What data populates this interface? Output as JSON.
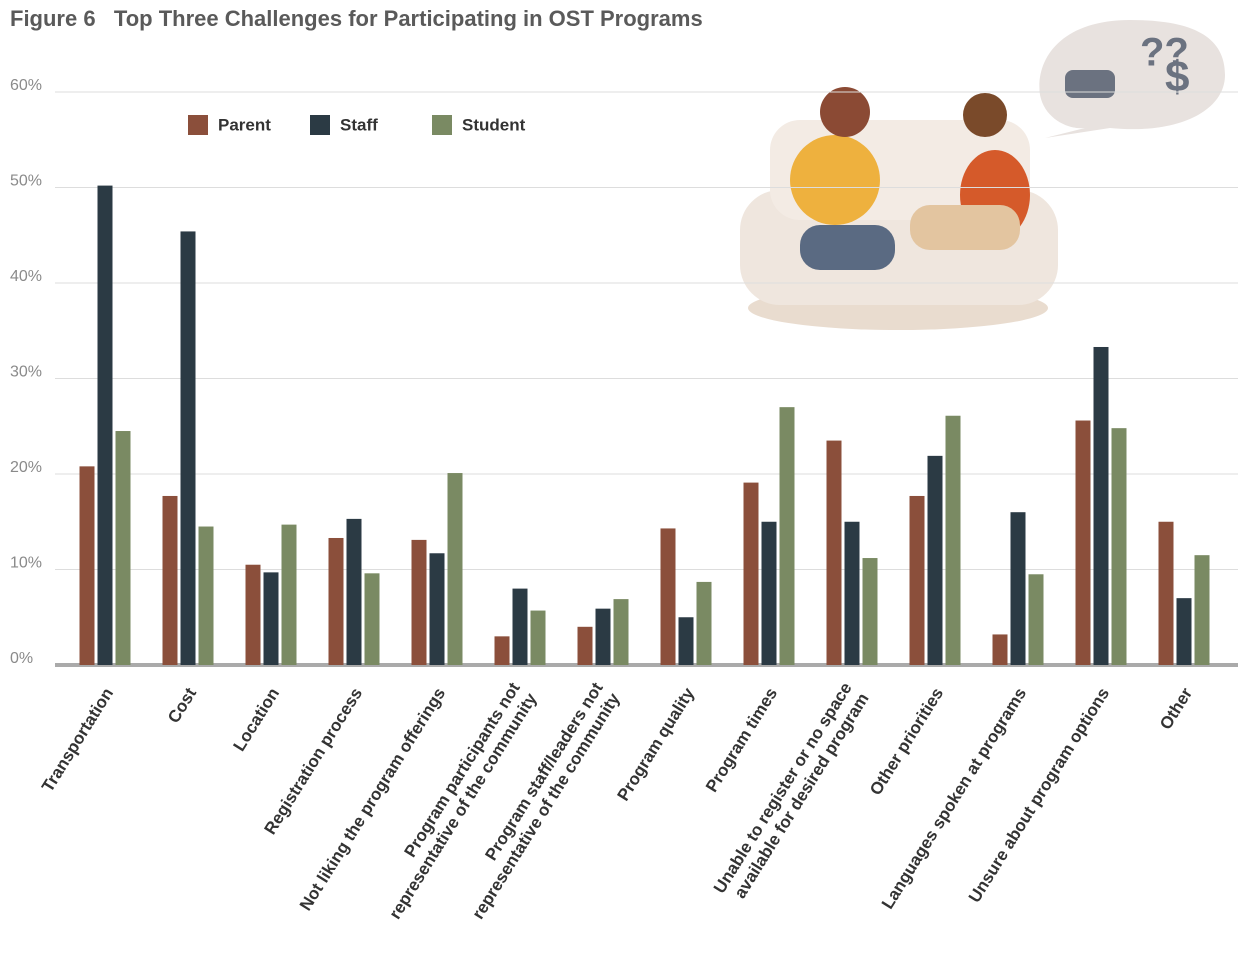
{
  "chart_data": {
    "type": "bar",
    "title": "Figure 6   Top Three Challenges for Participating in OST Programs",
    "categories": [
      [
        "Transportation"
      ],
      [
        "Cost"
      ],
      [
        "Location"
      ],
      [
        "Registration process"
      ],
      [
        "Not liking the program offerings"
      ],
      [
        "Program participants not",
        "representative of the community"
      ],
      [
        "Program staff/leaders not",
        "representative of the community"
      ],
      [
        "Program quality"
      ],
      [
        "Program times"
      ],
      [
        "Unable to register or no space",
        "available for desired program"
      ],
      [
        "Other priorities"
      ],
      [
        "Languages spoken at programs"
      ],
      [
        "Unsure about program options"
      ],
      [
        "Other"
      ]
    ],
    "series": [
      {
        "name": "Parent",
        "color": "#8b4f3b",
        "values": [
          20.8,
          17.7,
          10.5,
          13.3,
          13.1,
          3,
          4,
          14.3,
          19.1,
          23.5,
          17.7,
          3.2,
          25.6,
          15
        ]
      },
      {
        "name": "Staff",
        "color": "#2b3a44",
        "values": [
          50.2,
          45.4,
          9.7,
          15.3,
          11.7,
          8,
          5.9,
          5,
          15,
          15,
          21.9,
          16,
          33.3,
          7
        ]
      },
      {
        "name": "Student",
        "color": "#7a8a63",
        "values": [
          24.5,
          14.5,
          14.7,
          9.6,
          20.1,
          5.7,
          6.9,
          8.7,
          27,
          11.2,
          26.1,
          9.5,
          24.8,
          11.5
        ]
      }
    ],
    "ylim": [
      0,
      60
    ],
    "yticks": [
      {
        "value": 0,
        "label": "0%"
      },
      {
        "value": 10,
        "label": "10%"
      },
      {
        "value": 20,
        "label": "20%"
      },
      {
        "value": 30,
        "label": "30%"
      },
      {
        "value": 40,
        "label": "40%"
      },
      {
        "value": 50,
        "label": "50%"
      },
      {
        "value": 60,
        "label": "60%"
      }
    ],
    "grid": true
  }
}
